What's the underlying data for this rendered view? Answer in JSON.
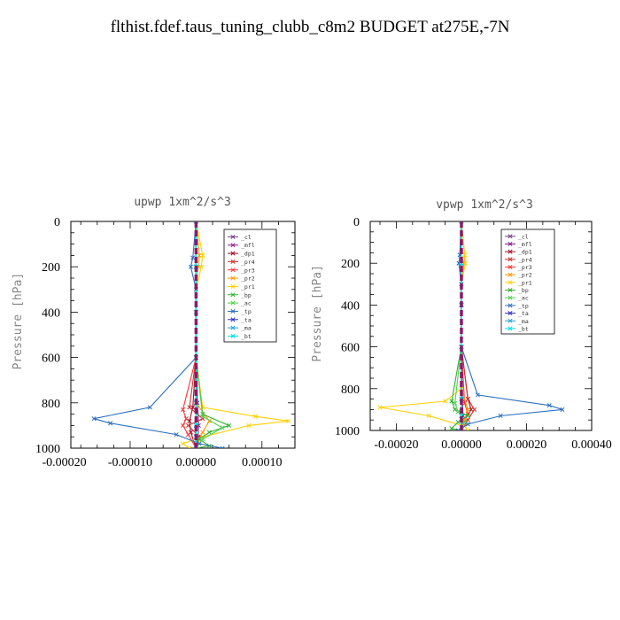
{
  "title": "flthist.fdef.taus_tuning_clubb_c8m2  BUDGET at275E,-7N",
  "legend_labels": [
    "_cl",
    "_mfl",
    "_dp1",
    "_pr4",
    "_pr3",
    "_pr2",
    "_pr1",
    "_bp",
    "_ac",
    "_tp",
    "_ta",
    "_ma",
    "_bt"
  ],
  "chart_data": [
    {
      "type": "line",
      "title": "upwp   1xm^2/s^3",
      "ylabel": "Pressure  [hPa]",
      "ylim": [
        1000,
        0
      ],
      "xlim": [
        -0.00019,
        0.00015
      ],
      "xticks": [
        -0.0002,
        -0.0001,
        0.0,
        0.0001
      ],
      "xtick_labels": [
        "-0.00020",
        "-0.00010",
        "0.00000",
        "0.00010"
      ],
      "yticks": [
        0,
        200,
        400,
        600,
        800,
        1000
      ],
      "ytick_labels": [
        "0",
        "200",
        "400",
        "600",
        "800",
        "1000"
      ],
      "legend_position": "top-right",
      "series": [
        {
          "name": "_cl",
          "color": "#7a3c8c",
          "x": [
            0,
            0,
            0,
            0,
            2e-06,
            4e-06,
            3e-06,
            0
          ],
          "y": [
            0,
            200,
            400,
            600,
            800,
            900,
            950,
            1000
          ]
        },
        {
          "name": "_mfl",
          "color": "#8b1a8b",
          "x": [
            0,
            0,
            0,
            0,
            0,
            0,
            0,
            0
          ],
          "y": [
            0,
            200,
            400,
            600,
            800,
            900,
            950,
            1000
          ]
        },
        {
          "name": "_dp1",
          "color": "#a0102a",
          "x": [
            0,
            0,
            0,
            0,
            -5e-06,
            -1e-05,
            -8e-06,
            0
          ],
          "y": [
            0,
            200,
            400,
            600,
            820,
            880,
            930,
            1000
          ]
        },
        {
          "name": "_pr4",
          "color": "#d03030",
          "x": [
            0,
            0,
            0,
            0,
            -1e-05,
            1e-05,
            -1.2e-05,
            5e-06,
            0
          ],
          "y": [
            0,
            200,
            400,
            600,
            820,
            870,
            900,
            950,
            1000
          ]
        },
        {
          "name": "_pr3",
          "color": "#ff3030",
          "x": [
            0,
            0,
            0,
            0,
            -2e-05,
            -1.5e-05,
            -2e-05,
            -1.2e-05,
            0
          ],
          "y": [
            0,
            200,
            400,
            600,
            830,
            870,
            900,
            940,
            1000
          ]
        },
        {
          "name": "_pr2",
          "color": "#ff9900",
          "x": [
            0,
            5e-06,
            3e-06,
            0,
            0,
            2e-05,
            1e-05,
            0
          ],
          "y": [
            0,
            150,
            200,
            300,
            800,
            880,
            930,
            1000
          ]
        },
        {
          "name": "_pr1",
          "color": "#ffd000",
          "x": [
            0,
            1e-05,
            8e-06,
            0,
            0,
            1e-05,
            9e-05,
            0.00014,
            8e-05,
            1e-05,
            -2e-05,
            -1e-05
          ],
          "y": [
            0,
            150,
            200,
            300,
            600,
            820,
            860,
            880,
            900,
            950,
            980,
            1000
          ]
        },
        {
          "name": "_bp",
          "color": "#30b030",
          "x": [
            0,
            0,
            0,
            0,
            1e-05,
            5e-05,
            2e-05,
            5e-06,
            2e-05,
            0
          ],
          "y": [
            0,
            200,
            400,
            600,
            850,
            900,
            930,
            960,
            990,
            1000
          ]
        },
        {
          "name": "_ac",
          "color": "#50d050",
          "x": [
            0,
            0,
            0,
            0,
            1e-05,
            4e-05,
            1e-05,
            0
          ],
          "y": [
            0,
            200,
            400,
            600,
            860,
            910,
            960,
            1000
          ]
        },
        {
          "name": "_tp",
          "color": "#2a6fc0",
          "x": [
            0,
            -5e-06,
            -8e-06,
            0,
            0,
            -7e-05,
            -0.000155,
            -0.00013,
            -3e-05,
            5e-06,
            4e-05
          ],
          "y": [
            0,
            160,
            200,
            300,
            600,
            820,
            870,
            890,
            940,
            980,
            1000
          ]
        },
        {
          "name": "_ta",
          "color": "#3030c0",
          "x": [
            0,
            0,
            0,
            0,
            0,
            0,
            0,
            0
          ],
          "y": [
            0,
            200,
            400,
            600,
            800,
            900,
            950,
            1000
          ]
        },
        {
          "name": "_ma",
          "color": "#20a0d0",
          "x": [
            0,
            0,
            0,
            0,
            0,
            0,
            0,
            0
          ],
          "y": [
            0,
            200,
            400,
            600,
            800,
            900,
            950,
            1000
          ]
        },
        {
          "name": "_bt",
          "color": "#00e0e0",
          "x": [
            0,
            0,
            0,
            0,
            0,
            0,
            0,
            0
          ],
          "y": [
            0,
            200,
            400,
            600,
            800,
            900,
            950,
            1000
          ]
        }
      ]
    },
    {
      "type": "line",
      "title": "vpwp   1xm^2/s^3",
      "ylabel": "Pressure  [hPa]",
      "ylim": [
        1000,
        0
      ],
      "xlim": [
        -0.00028,
        0.0004
      ],
      "xticks": [
        -0.0002,
        0.0,
        0.0002,
        0.0004
      ],
      "xtick_labels": [
        "-0.00020",
        "0.00000",
        "0.00020",
        "0.00040"
      ],
      "yticks": [
        0,
        200,
        400,
        600,
        800,
        1000
      ],
      "ytick_labels": [
        "0",
        "200",
        "400",
        "600",
        "800",
        "1000"
      ],
      "legend_position": "top-right",
      "series": [
        {
          "name": "_cl",
          "color": "#7a3c8c",
          "x": [
            0,
            0,
            0,
            0,
            3e-06,
            5e-06,
            0
          ],
          "y": [
            0,
            200,
            400,
            600,
            850,
            930,
            1000
          ]
        },
        {
          "name": "_mfl",
          "color": "#8b1a8b",
          "x": [
            0,
            0,
            0,
            0,
            0,
            0,
            0
          ],
          "y": [
            0,
            200,
            400,
            600,
            850,
            930,
            1000
          ]
        },
        {
          "name": "_dp1",
          "color": "#a0102a",
          "x": [
            0,
            0,
            0,
            0,
            2e-05,
            3e-05,
            1e-05,
            0
          ],
          "y": [
            0,
            200,
            400,
            600,
            850,
            900,
            950,
            1000
          ]
        },
        {
          "name": "_pr4",
          "color": "#d03030",
          "x": [
            0,
            0,
            0,
            0,
            2e-05,
            4e-05,
            2e-05,
            0
          ],
          "y": [
            0,
            200,
            400,
            600,
            850,
            900,
            950,
            1000
          ]
        },
        {
          "name": "_pr3",
          "color": "#ff3030",
          "x": [
            0,
            0,
            0,
            0,
            1e-05,
            2e-05,
            1e-05,
            0
          ],
          "y": [
            0,
            200,
            400,
            600,
            870,
            920,
            960,
            1000
          ]
        },
        {
          "name": "_pr2",
          "color": "#ff9900",
          "x": [
            0,
            1e-05,
            8e-06,
            0,
            0,
            2e-05,
            1e-05,
            0
          ],
          "y": [
            0,
            160,
            200,
            300,
            800,
            900,
            950,
            1000
          ]
        },
        {
          "name": "_pr1",
          "color": "#ffd000",
          "x": [
            0,
            1e-05,
            1.2e-05,
            0,
            0,
            -5e-05,
            -0.00025,
            -0.0001,
            1e-05,
            2e-05
          ],
          "y": [
            0,
            160,
            200,
            300,
            800,
            860,
            890,
            930,
            980,
            1000
          ]
        },
        {
          "name": "_bp",
          "color": "#30b030",
          "x": [
            0,
            0,
            0,
            0,
            -3e-05,
            -2e-05,
            2e-05,
            -1e-05,
            -3e-05,
            0
          ],
          "y": [
            0,
            200,
            400,
            600,
            860,
            900,
            930,
            960,
            990,
            1000
          ]
        },
        {
          "name": "_ac",
          "color": "#50d050",
          "x": [
            0,
            0,
            0,
            0,
            -2e-05,
            -1e-05,
            1e-05,
            0
          ],
          "y": [
            0,
            200,
            400,
            600,
            870,
            910,
            960,
            1000
          ]
        },
        {
          "name": "_tp",
          "color": "#2a6fc0",
          "x": [
            0,
            -5e-06,
            -8e-06,
            0,
            0,
            5e-05,
            0.00027,
            0.00031,
            0.00012,
            2e-05,
            -1e-05
          ],
          "y": [
            0,
            160,
            200,
            300,
            600,
            830,
            880,
            900,
            930,
            970,
            1000
          ]
        },
        {
          "name": "_ta",
          "color": "#3030c0",
          "x": [
            0,
            0,
            0,
            0,
            0,
            0,
            0
          ],
          "y": [
            0,
            200,
            400,
            600,
            850,
            930,
            1000
          ]
        },
        {
          "name": "_ma",
          "color": "#20a0d0",
          "x": [
            0,
            0,
            0,
            0,
            0,
            0,
            0
          ],
          "y": [
            0,
            200,
            400,
            600,
            850,
            930,
            1000
          ]
        },
        {
          "name": "_bt",
          "color": "#00e0e0",
          "x": [
            0,
            0,
            0,
            0,
            0,
            0,
            0
          ],
          "y": [
            0,
            200,
            400,
            600,
            850,
            930,
            1000
          ]
        }
      ]
    }
  ]
}
